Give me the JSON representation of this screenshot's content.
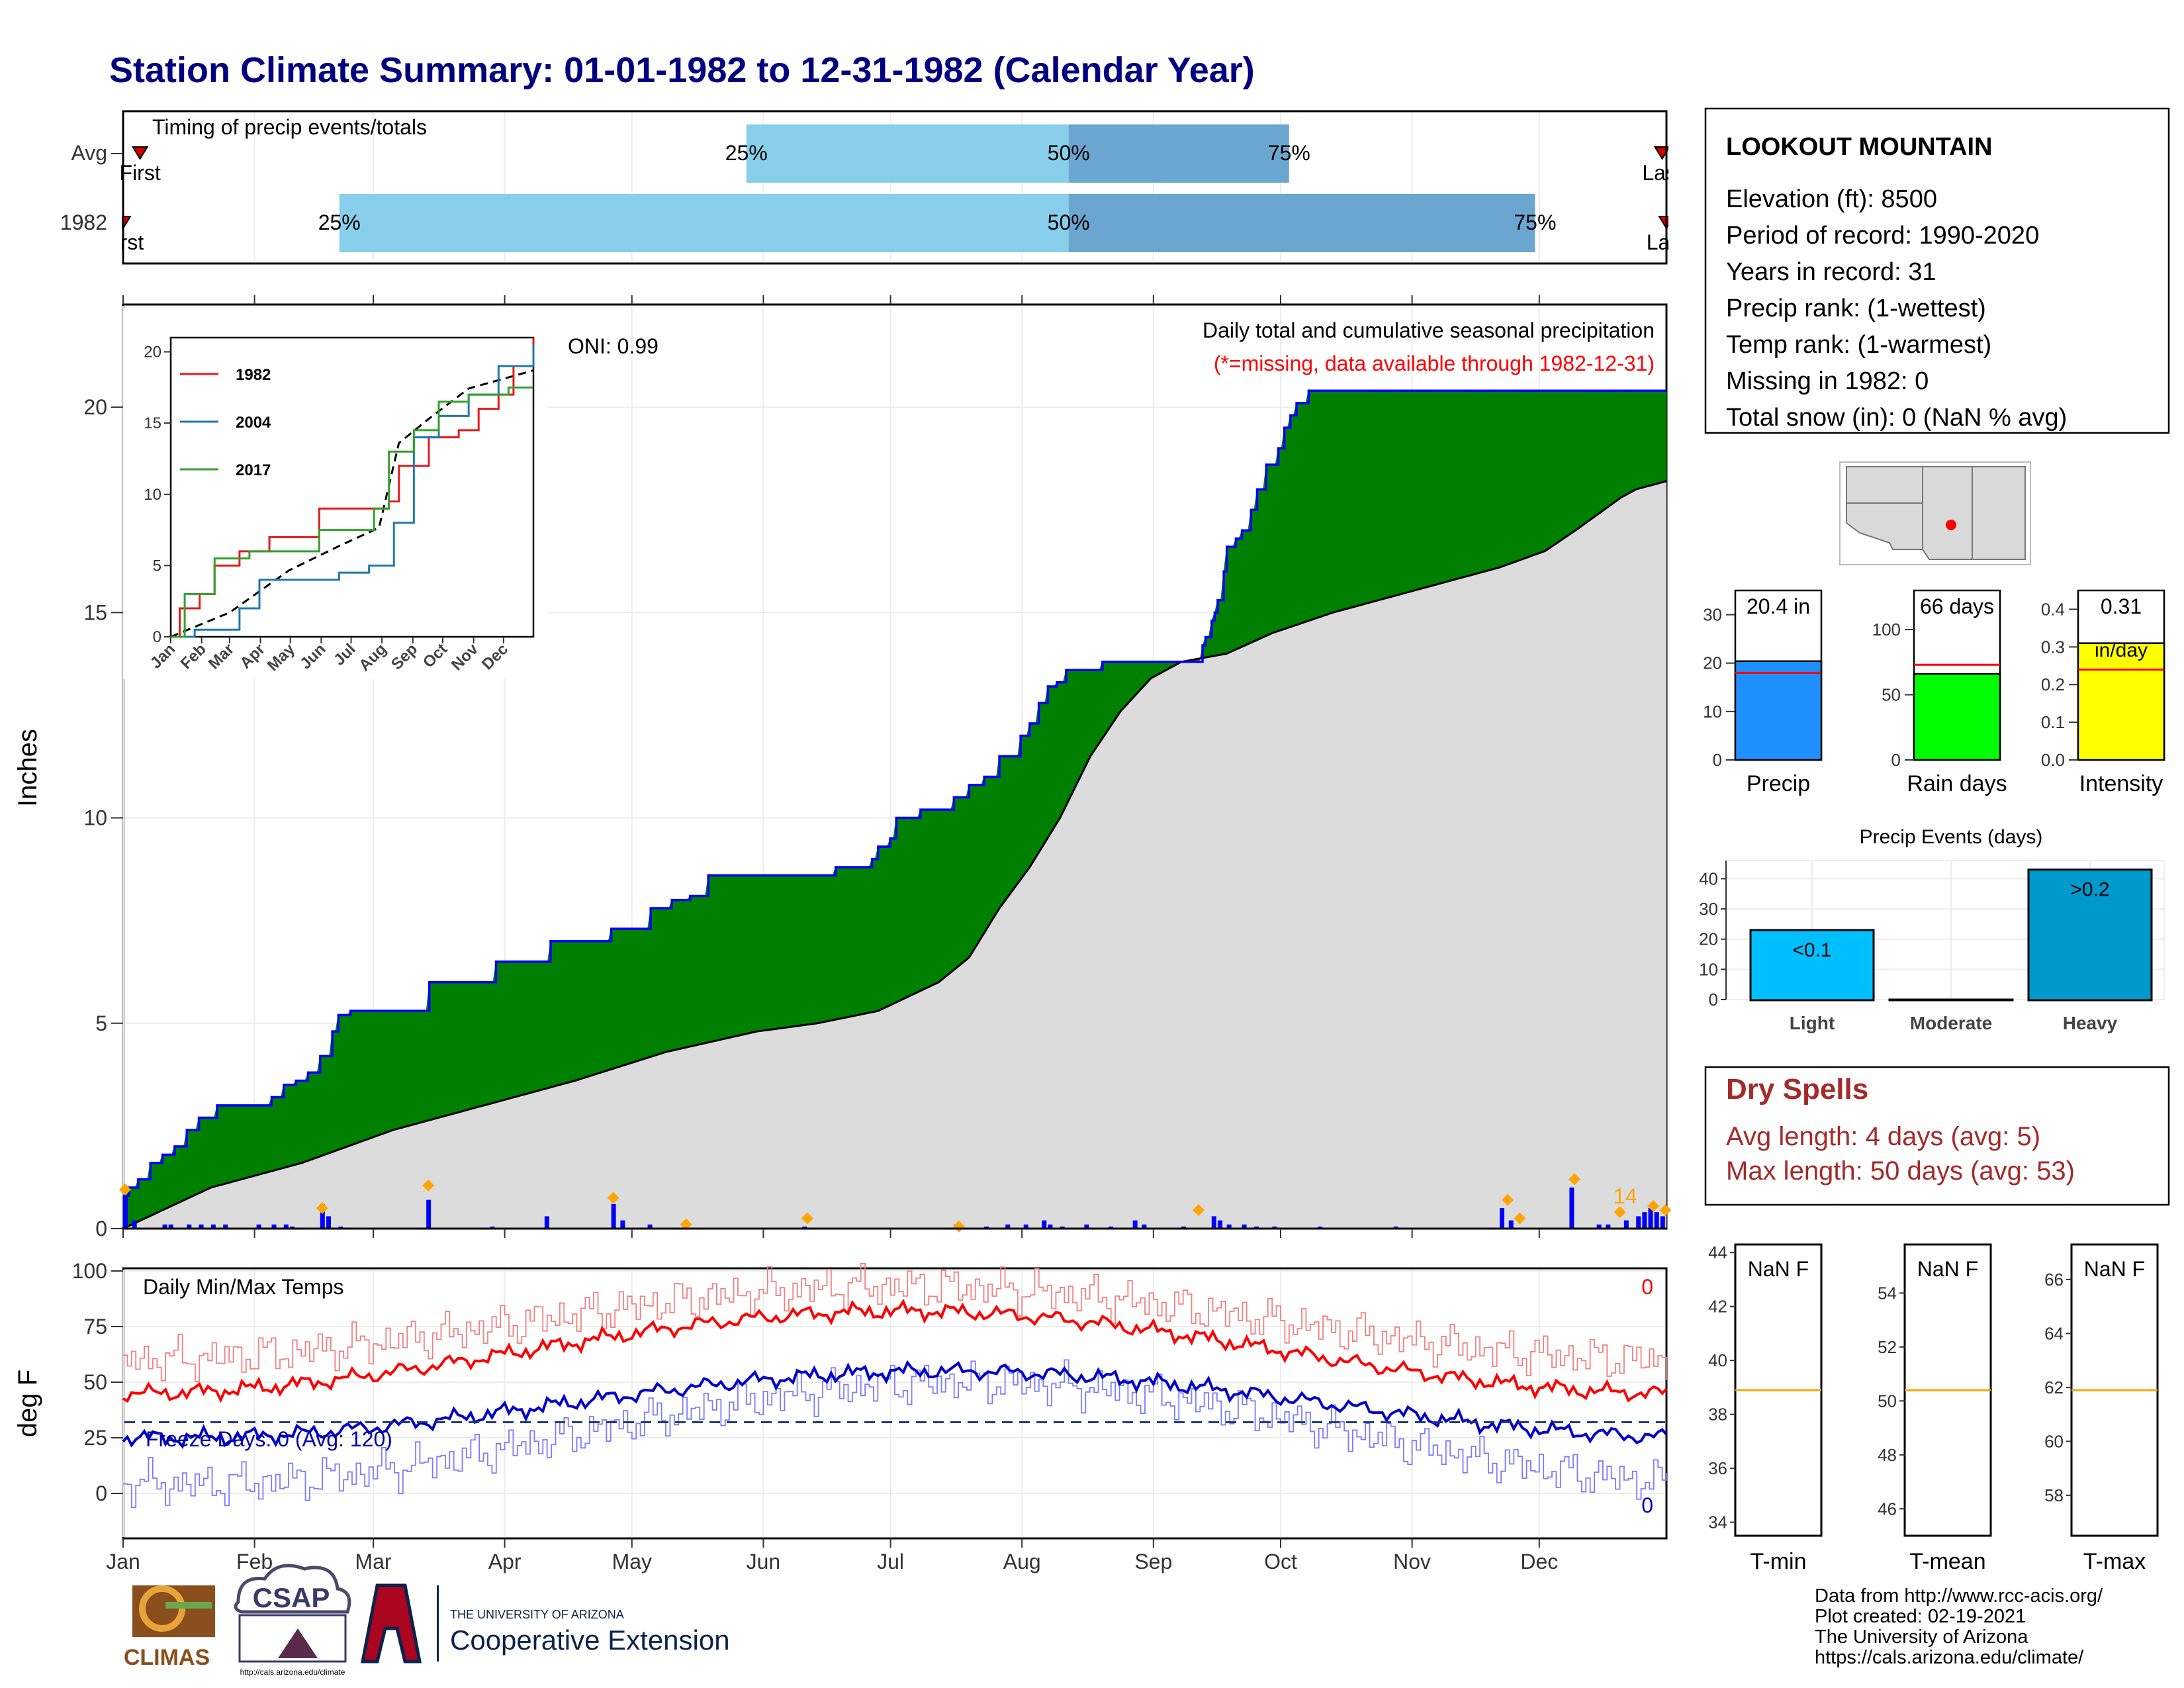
{
  "title": "Station Climate Summary: 01-01-1982 to 12-31-1982 (Calendar Year)",
  "timing_panel": {
    "title": "Timing of precip events/totals",
    "rows": [
      {
        "label": "Avg",
        "first_label": "First",
        "last_label": "Last",
        "first_day": 5,
        "last_day": 364,
        "p25": 148,
        "p50": 224,
        "p75": 276
      },
      {
        "label": "1982",
        "first_label": "First",
        "last_label": "Last",
        "first_day": 1,
        "last_day": 365,
        "p25": 52,
        "p50": 224,
        "p75": 334
      }
    ],
    "pct_labels": [
      "25%",
      "50%",
      "75%"
    ]
  },
  "precip_panel": {
    "ylabel": "Inches",
    "subtitle": "Daily total and cumulative seasonal precipitation",
    "missing_note": "(*=missing, data available through 1982-12-31)",
    "oni": "ONI: 0.99",
    "count_label": "14"
  },
  "inset": {
    "years": [
      "1982",
      "2004",
      "2017"
    ],
    "colors": [
      "#e31a1c",
      "#1f78b4",
      "#33a02c"
    ],
    "months": [
      "Jan",
      "Feb",
      "Mar",
      "Apr",
      "May",
      "Jun",
      "Jul",
      "Aug",
      "Sep",
      "Oct",
      "Nov",
      "Dec"
    ],
    "yticks": [
      "0",
      "5",
      "10",
      "15",
      "20"
    ]
  },
  "temp_panel": {
    "ylabel": "deg F",
    "title": "Daily Min/Max Temps",
    "freeze": "Freeze Days: 0 (Avg: 120)",
    "max_count": "0",
    "min_count": "0",
    "yticks": [
      "0",
      "25",
      "50",
      "75",
      "100"
    ],
    "freeze_line": 32
  },
  "months": [
    "Jan",
    "Feb",
    "Mar",
    "Apr",
    "May",
    "Jun",
    "Jul",
    "Aug",
    "Sep",
    "Oct",
    "Nov",
    "Dec"
  ],
  "station": {
    "name": "LOOKOUT MOUNTAIN",
    "lines": [
      "Elevation (ft): 8500",
      "Period of record: 1990-2020",
      "Years in record: 31",
      "Precip rank:  (1-wettest)",
      "Temp rank:  (1-warmest)",
      "Missing in 1982: 0",
      "Total snow (in): 0 (NaN % avg)"
    ]
  },
  "stat_bars": [
    {
      "label": "Precip",
      "value_label": "20.4 in",
      "value": 20.4,
      "avg": 18.0,
      "ymax": 35,
      "ticks": [
        "0",
        "10",
        "20",
        "30"
      ],
      "tick_vals": [
        0,
        10,
        20,
        30
      ],
      "color": "#1e90ff"
    },
    {
      "label": "Rain days",
      "value_label": "66 days",
      "value": 66,
      "avg": 73,
      "ymax": 130,
      "ticks": [
        "0",
        "50",
        "100"
      ],
      "tick_vals": [
        0,
        50,
        100
      ],
      "color": "#00ff00"
    },
    {
      "label": "Intensity",
      "value_label": "0.31",
      "value_label2": "in/day",
      "value": 0.31,
      "avg": 0.24,
      "ymax": 0.45,
      "ticks": [
        "0.0",
        "0.1",
        "0.2",
        "0.3",
        "0.4"
      ],
      "tick_vals": [
        0,
        0.1,
        0.2,
        0.3,
        0.4
      ],
      "color": "#ffff00"
    }
  ],
  "events": {
    "title": "Precip Events (days)",
    "categories": [
      "Light",
      "Moderate",
      "Heavy"
    ],
    "labels": [
      "<0.1",
      "",
      ">0.2"
    ],
    "values": [
      23,
      0,
      43
    ],
    "colors": [
      "#00bfff",
      "#0aa0d8",
      "#0099cc"
    ],
    "ticks": [
      "0",
      "10",
      "20",
      "30",
      "40"
    ]
  },
  "dry_spells": {
    "title": "Dry Spells",
    "avg": "Avg length: 4 days (avg: 5)",
    "max": "Max length: 50 days (avg: 53)"
  },
  "temp_boxes": [
    {
      "label": "T-min",
      "value": "NaN F",
      "avg": 38.9,
      "ticks": [
        "34",
        "36",
        "38",
        "40",
        "42",
        "44"
      ],
      "min": 33.5,
      "max": 44.3
    },
    {
      "label": "T-mean",
      "value": "NaN F",
      "avg": 50.4,
      "ticks": [
        "46",
        "48",
        "50",
        "52",
        "54"
      ],
      "min": 45.0,
      "max": 55.8
    },
    {
      "label": "T-max",
      "value": "NaN F",
      "avg": 61.9,
      "ticks": [
        "58",
        "60",
        "62",
        "64",
        "66"
      ],
      "min": 56.5,
      "max": 67.3
    }
  ],
  "credits": [
    "Data from http://www.rcc-acis.org/",
    "Plot created: 02-19-2021",
    "The University of Arizona",
    "https://cals.arizona.edu/climate/"
  ],
  "logos": {
    "climas": "CLIMAS",
    "csap": "CSAP",
    "csap_url": "http://cals.arizona.edu/climate",
    "ua_small": "THE UNIVERSITY OF ARIZONA",
    "ua_big": "Cooperative Extension"
  },
  "colors": {
    "title": "#000080",
    "above": "#008000",
    "below": "#8b5a00",
    "normal_fill": "#dcdcdc",
    "cum_line": "#0000ff",
    "daily_bar": "#0000ff",
    "marker": "#ffa500",
    "max_temp": "#ff0000",
    "min_temp": "#0000cc",
    "bar_light": "#87ceeb",
    "bar_dark": "#6aa6cf",
    "missing": "#ff0000"
  },
  "chart_data": {
    "type": "area",
    "title": "Daily total and cumulative seasonal precipitation",
    "ylabel": "Inches",
    "ylim": [
      0,
      22.5
    ],
    "x_unit": "day of year",
    "cumulative_1982": [
      [
        1,
        0.8
      ],
      [
        3,
        1.0
      ],
      [
        6,
        1.2
      ],
      [
        10,
        1.6
      ],
      [
        14,
        1.8
      ],
      [
        18,
        2.0
      ],
      [
        22,
        2.4
      ],
      [
        26,
        2.7
      ],
      [
        32,
        3.0
      ],
      [
        44,
        3.0
      ],
      [
        50,
        3.2
      ],
      [
        54,
        3.5
      ],
      [
        58,
        3.6
      ],
      [
        62,
        3.8
      ],
      [
        66,
        4.2
      ],
      [
        70,
        4.8
      ],
      [
        72,
        5.2
      ],
      [
        76,
        5.3
      ],
      [
        100,
        5.3
      ],
      [
        102,
        6.0
      ],
      [
        122,
        6.0
      ],
      [
        124,
        6.5
      ],
      [
        140,
        6.5
      ],
      [
        142,
        7.0
      ],
      [
        160,
        7.0
      ],
      [
        162,
        7.3
      ],
      [
        173,
        7.3
      ],
      [
        175,
        7.8
      ],
      [
        180,
        7.8
      ],
      [
        182,
        8.0
      ],
      [
        188,
        8.1
      ],
      [
        194,
        8.6
      ],
      [
        234,
        8.6
      ],
      [
        236,
        8.8
      ],
      [
        245,
        8.8
      ],
      [
        248,
        9.0
      ],
      [
        250,
        9.3
      ],
      [
        254,
        9.5
      ],
      [
        256,
        10.0
      ],
      [
        264,
        10.2
      ],
      [
        272,
        10.2
      ],
      [
        275,
        10.5
      ],
      [
        280,
        10.8
      ],
      [
        285,
        11.0
      ],
      [
        290,
        11.5
      ],
      [
        297,
        12.0
      ],
      [
        300,
        12.3
      ],
      [
        303,
        12.8
      ],
      [
        306,
        13.2
      ],
      [
        309,
        13.3
      ],
      [
        312,
        13.6
      ],
      [
        324,
        13.8
      ],
      [
        355,
        13.8
      ],
      [
        357,
        14.2
      ],
      [
        358,
        14.4
      ],
      [
        360,
        14.8
      ],
      [
        361,
        15.0
      ],
      [
        362,
        15.3
      ],
      [
        364,
        16.0
      ],
      [
        365,
        16.6
      ],
      [
        368,
        16.8
      ],
      [
        370,
        17.0
      ],
      [
        373,
        17.5
      ],
      [
        375,
        18.0
      ],
      [
        378,
        18.6
      ],
      [
        382,
        19.0
      ],
      [
        384,
        19.5
      ],
      [
        386,
        19.8
      ],
      [
        388,
        20.1
      ],
      [
        392,
        20.4
      ]
    ],
    "cumulative_avg": [
      [
        1,
        0
      ],
      [
        30,
        1.0
      ],
      [
        60,
        1.6
      ],
      [
        90,
        2.4
      ],
      [
        120,
        3.0
      ],
      [
        150,
        3.6
      ],
      [
        180,
        4.3
      ],
      [
        210,
        4.8
      ],
      [
        230,
        5.0
      ],
      [
        250,
        5.3
      ],
      [
        270,
        6.0
      ],
      [
        280,
        6.6
      ],
      [
        290,
        7.8
      ],
      [
        300,
        8.8
      ],
      [
        310,
        10.0
      ],
      [
        320,
        11.5
      ],
      [
        330,
        12.6
      ],
      [
        340,
        13.4
      ],
      [
        350,
        13.8
      ],
      [
        365,
        14.0
      ],
      [
        380,
        14.5
      ],
      [
        400,
        15.0
      ],
      [
        420,
        15.4
      ],
      [
        440,
        15.8
      ],
      [
        455,
        16.1
      ],
      [
        470,
        16.5
      ],
      [
        480,
        17.0
      ],
      [
        495,
        17.8
      ],
      [
        500,
        18.0
      ],
      [
        510,
        18.2
      ]
    ],
    "daily_max_temp": "approximately 45 F in Jan rising to about 82 F in early Jul and falling to about 45 F in Dec",
    "daily_min_temp": "approximately 25 F in Jan rising to about 55 F in Jul and falling to about 25 F in Dec"
  }
}
